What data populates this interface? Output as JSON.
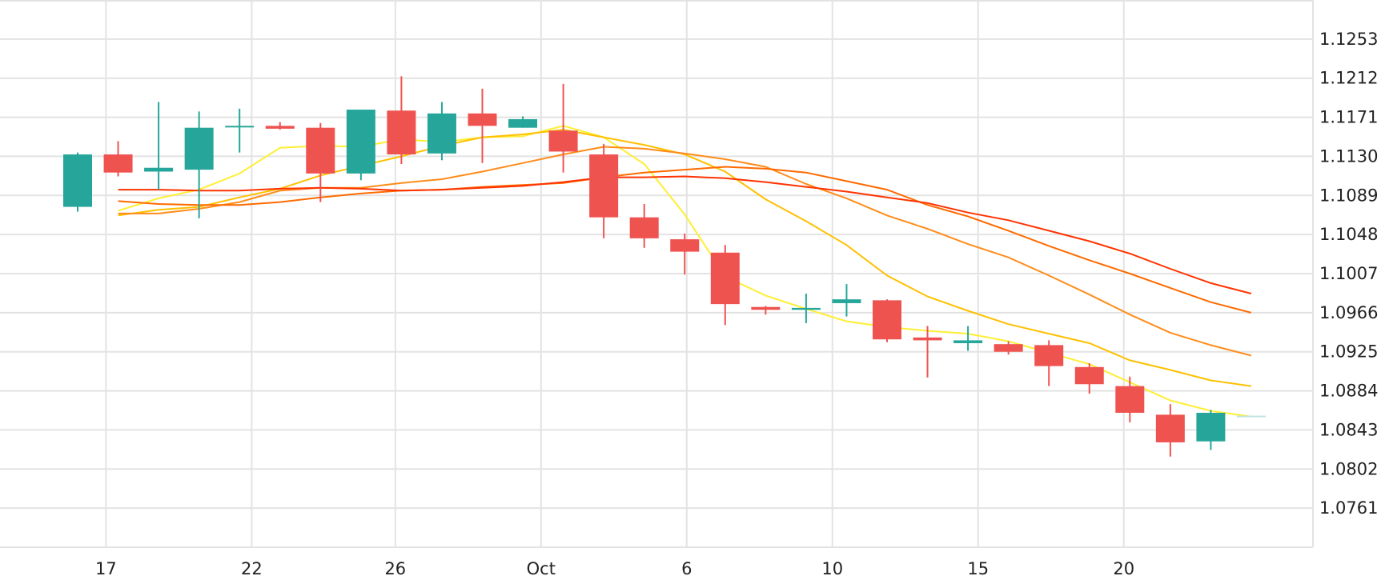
{
  "chart_data": {
    "type": "candlestick",
    "x_ticks": [
      "17",
      "22",
      "26",
      "Oct",
      "6",
      "10",
      "15",
      "20"
    ],
    "y_ticks": [
      "1.1253",
      "1.1212",
      "1.1171",
      "1.1130",
      "1.1089",
      "1.1048",
      "1.1007",
      "1.0966",
      "1.0925",
      "1.0884",
      "1.0843",
      "1.0802",
      "1.0761"
    ],
    "ylim": [
      1.072,
      1.1294
    ],
    "grid": true,
    "colors": {
      "up": "#26a69a",
      "down": "#ef5350",
      "grid": "#e3e3e3"
    },
    "candles": [
      {
        "index": 0,
        "open": 1.1077,
        "high": 1.1134,
        "low": 1.1072,
        "close": 1.1132
      },
      {
        "index": 1,
        "open": 1.1132,
        "high": 1.1146,
        "low": 1.1109,
        "close": 1.1113
      },
      {
        "index": 2,
        "open": 1.1114,
        "high": 1.1187,
        "low": 1.1095,
        "close": 1.1118
      },
      {
        "index": 3,
        "open": 1.1116,
        "high": 1.1177,
        "low": 1.1065,
        "close": 1.116
      },
      {
        "index": 4,
        "open": 1.1161,
        "high": 1.118,
        "low": 1.1134,
        "close": 1.1162
      },
      {
        "index": 5,
        "open": 1.1162,
        "high": 1.1166,
        "low": 1.1158,
        "close": 1.1159
      },
      {
        "index": 6,
        "open": 1.116,
        "high": 1.1165,
        "low": 1.1082,
        "close": 1.1112
      },
      {
        "index": 7,
        "open": 1.1112,
        "high": 1.1179,
        "low": 1.1105,
        "close": 1.1179
      },
      {
        "index": 8,
        "open": 1.1178,
        "high": 1.1214,
        "low": 1.1122,
        "close": 1.1132
      },
      {
        "index": 9,
        "open": 1.1133,
        "high": 1.1187,
        "low": 1.1126,
        "close": 1.1175
      },
      {
        "index": 10,
        "open": 1.1175,
        "high": 1.1201,
        "low": 1.1123,
        "close": 1.1162
      },
      {
        "index": 11,
        "open": 1.116,
        "high": 1.1172,
        "low": 1.116,
        "close": 1.1169
      },
      {
        "index": 12,
        "open": 1.1157,
        "high": 1.1206,
        "low": 1.1113,
        "close": 1.1135
      },
      {
        "index": 13,
        "open": 1.1132,
        "high": 1.1143,
        "low": 1.1044,
        "close": 1.1066
      },
      {
        "index": 14,
        "open": 1.1066,
        "high": 1.108,
        "low": 1.1034,
        "close": 1.1044
      },
      {
        "index": 15,
        "open": 1.1043,
        "high": 1.1049,
        "low": 1.1006,
        "close": 1.103
      },
      {
        "index": 16,
        "open": 1.1029,
        "high": 1.1037,
        "low": 1.0953,
        "close": 1.0975
      },
      {
        "index": 17,
        "open": 1.0972,
        "high": 1.0973,
        "low": 1.0964,
        "close": 1.0969
      },
      {
        "index": 18,
        "open": 1.0969,
        "high": 1.0986,
        "low": 1.0955,
        "close": 1.0971
      },
      {
        "index": 19,
        "open": 1.0976,
        "high": 1.0996,
        "low": 1.0962,
        "close": 1.098
      },
      {
        "index": 20,
        "open": 1.0979,
        "high": 1.098,
        "low": 1.0935,
        "close": 1.0938
      },
      {
        "index": 21,
        "open": 1.094,
        "high": 1.0952,
        "low": 1.0898,
        "close": 1.0937
      },
      {
        "index": 22,
        "open": 1.0934,
        "high": 1.0952,
        "low": 1.0926,
        "close": 1.0937
      },
      {
        "index": 23,
        "open": 1.0933,
        "high": 1.0936,
        "low": 1.0922,
        "close": 1.0925
      },
      {
        "index": 24,
        "open": 1.0932,
        "high": 1.0937,
        "low": 1.0889,
        "close": 1.091
      },
      {
        "index": 25,
        "open": 1.0909,
        "high": 1.0913,
        "low": 1.0881,
        "close": 1.0891
      },
      {
        "index": 26,
        "open": 1.0889,
        "high": 1.0899,
        "low": 1.0851,
        "close": 1.0861
      },
      {
        "index": 27,
        "open": 1.0859,
        "high": 1.087,
        "low": 1.0815,
        "close": 1.083
      },
      {
        "index": 28,
        "open": 1.0831,
        "high": 1.0864,
        "low": 1.0822,
        "close": 1.0861
      },
      {
        "index": 29,
        "open": 1.0858,
        "high": 1.0858,
        "low": 1.0858,
        "close": 1.0858
      }
    ],
    "moving_averages": [
      {
        "color": "#ffee33",
        "values": [
          null,
          1.1073,
          1.1086,
          1.1095,
          1.1112,
          1.1139,
          1.1141,
          1.114,
          1.1148,
          1.1145,
          1.115,
          1.1151,
          1.1162,
          1.115,
          1.1122,
          1.1069,
          1.1004,
          1.0984,
          1.097,
          1.0957,
          1.0951,
          1.0947,
          1.0944,
          1.0936,
          1.0924,
          1.0912,
          1.0893,
          1.0874,
          1.0863,
          1.0857
        ]
      },
      {
        "color": "#ffc000",
        "values": [
          null,
          1.1068,
          1.1074,
          1.1077,
          1.1087,
          1.1096,
          1.111,
          1.112,
          1.113,
          1.1141,
          1.115,
          1.1153,
          1.1158,
          1.115,
          1.1142,
          1.1132,
          1.1114,
          1.1085,
          1.1062,
          1.1037,
          1.1005,
          1.0983,
          1.0968,
          1.0954,
          1.0944,
          1.0934,
          1.0916,
          1.0906,
          1.0895,
          1.0889
        ]
      },
      {
        "color": "#ff8c1a",
        "values": [
          null,
          1.107,
          1.107,
          1.1075,
          1.1082,
          1.1094,
          1.1097,
          1.1097,
          1.1102,
          1.1106,
          1.1114,
          1.1123,
          1.1132,
          1.114,
          1.1138,
          1.1133,
          1.1127,
          1.1119,
          1.1101,
          1.1086,
          1.1068,
          1.1054,
          1.1038,
          1.1024,
          1.1005,
          1.0985,
          1.0964,
          1.0945,
          1.0932,
          1.0921
        ]
      },
      {
        "color": "#ff6a00",
        "values": [
          null,
          1.1083,
          1.108,
          1.1079,
          1.1079,
          1.1082,
          1.1087,
          1.1091,
          1.1094,
          1.1095,
          1.1098,
          1.11,
          1.1102,
          1.1108,
          1.1113,
          1.1116,
          1.1119,
          1.1117,
          1.1113,
          1.1104,
          1.1095,
          1.1079,
          1.1067,
          1.1052,
          1.1036,
          1.1021,
          1.1007,
          1.0992,
          1.0977,
          1.0966
        ]
      },
      {
        "color": "#ff3300",
        "values": [
          null,
          1.1095,
          1.1095,
          1.1094,
          1.1094,
          1.1096,
          1.1097,
          1.1096,
          1.1094,
          1.1095,
          1.1097,
          1.1099,
          1.1103,
          1.1108,
          1.1108,
          1.1109,
          1.1107,
          1.1103,
          1.1098,
          1.1093,
          1.1087,
          1.1081,
          1.1071,
          1.1063,
          1.1052,
          1.1041,
          1.1028,
          1.1012,
          1.0997,
          1.0986
        ]
      }
    ]
  }
}
